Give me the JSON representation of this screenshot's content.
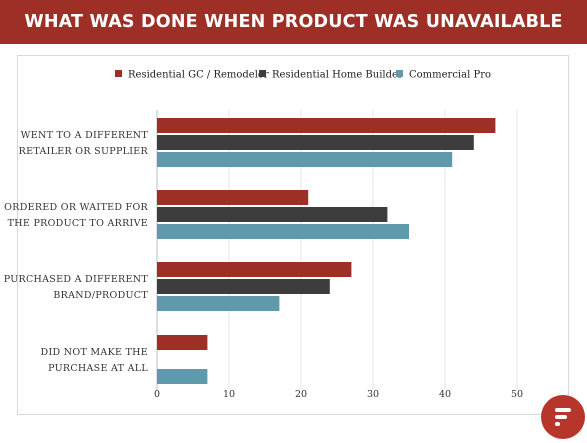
{
  "header": {
    "title": "WHAT WAS DONE WHEN PRODUCT WAS UNAVAILABLE"
  },
  "brand": {
    "accent": "#9e2f26",
    "logo_icon": "brand-logo-icon"
  },
  "chart_data": {
    "type": "bar",
    "orientation": "horizontal",
    "title": "",
    "xlabel": "",
    "ylabel": "",
    "categories": [
      [
        "WENT TO A DIFFERENT",
        "RETAILER OR SUPPLIER"
      ],
      [
        "ORDERED OR WAITED FOR",
        "THE PRODUCT TO ARRIVE"
      ],
      [
        "PURCHASED A DIFFERENT",
        "BRAND/PRODUCT"
      ],
      [
        "DID NOT MAKE THE",
        "PURCHASE AT ALL"
      ]
    ],
    "series": [
      {
        "name": "Residential GC / Remodeler",
        "color": "#9e2f26",
        "values": [
          47,
          21,
          27,
          7
        ]
      },
      {
        "name": "Residential Home Builder",
        "color": "#3d3d3d",
        "values": [
          44,
          32,
          24,
          0
        ]
      },
      {
        "name": "Commercial Pro",
        "color": "#5f9aac",
        "values": [
          41,
          35,
          17,
          7
        ]
      }
    ],
    "xlim": [
      0,
      50
    ],
    "xticks": [
      0,
      10,
      20,
      30,
      40,
      50
    ],
    "grid": "vertical",
    "legend": "top"
  }
}
